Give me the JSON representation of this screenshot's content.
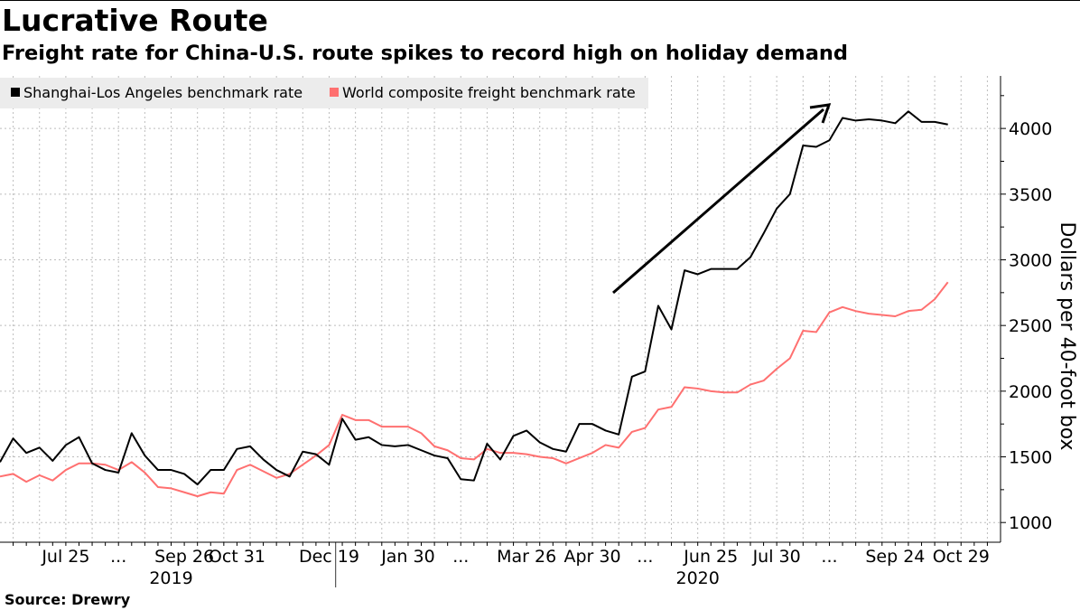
{
  "title": "Lucrative Route",
  "subtitle": "Freight rate for China-U.S. route spikes to record high on holiday demand",
  "source": "Source: Drewry",
  "chart_data": {
    "type": "line",
    "ylabel": "Dollars per 40-foot box",
    "ylim": [
      850,
      4400
    ],
    "y_ticks": [
      1000,
      1500,
      2000,
      2500,
      3000,
      3500,
      4000
    ],
    "legend": [
      "Shanghai-Los Angeles benchmark rate",
      "World composite freight benchmark rate"
    ],
    "legend_position": "top-left",
    "grid": true,
    "x_tick_labels": [
      "Jul 25",
      "...",
      "Sep 26",
      "Oct 31",
      "Dec 19",
      "Jan 30",
      "...",
      "Mar 26",
      "Apr 30",
      "...",
      "Jun 25",
      "Jul 30",
      "...",
      "Sep 24",
      "Oct 29"
    ],
    "x_tick_slots": [
      5,
      9,
      14,
      18,
      25,
      31,
      35,
      40,
      45,
      49,
      54,
      59,
      63,
      68,
      73
    ],
    "year_labels": [
      {
        "label": "2019",
        "slot": 13
      },
      {
        "label": "2020",
        "slot": 53
      }
    ],
    "year_divider_slot": 25.5,
    "slots_total": 76,
    "series": [
      {
        "name": "Shanghai-Los Angeles benchmark rate",
        "color": "#000000",
        "values": [
          1460,
          1640,
          1530,
          1570,
          1470,
          1590,
          1650,
          1450,
          1400,
          1380,
          1680,
          1510,
          1400,
          1400,
          1370,
          1290,
          1400,
          1400,
          1560,
          1580,
          1480,
          1400,
          1350,
          1540,
          1520,
          1440,
          1790,
          1630,
          1650,
          1590,
          1580,
          1590,
          1550,
          1510,
          1490,
          1330,
          1320,
          1600,
          1480,
          1660,
          1700,
          1610,
          1560,
          1540,
          1750,
          1750,
          1700,
          1670,
          2110,
          2150,
          2650,
          2470,
          2920,
          2890,
          2930,
          2930,
          2930,
          3020,
          3200,
          3390,
          3500,
          3870,
          3860,
          3910,
          4080,
          4060,
          4070,
          4060,
          4040,
          4130,
          4050,
          4050,
          4030
        ]
      },
      {
        "name": "World composite freight benchmark rate",
        "color": "#ff7070",
        "values": [
          1350,
          1370,
          1310,
          1360,
          1320,
          1400,
          1450,
          1450,
          1440,
          1400,
          1460,
          1380,
          1270,
          1260,
          1230,
          1200,
          1230,
          1220,
          1400,
          1440,
          1390,
          1340,
          1370,
          1440,
          1510,
          1590,
          1820,
          1780,
          1780,
          1730,
          1730,
          1730,
          1680,
          1580,
          1550,
          1490,
          1480,
          1560,
          1530,
          1530,
          1520,
          1500,
          1490,
          1450,
          1490,
          1530,
          1590,
          1570,
          1690,
          1720,
          1860,
          1880,
          2030,
          2020,
          2000,
          1990,
          1990,
          2050,
          2080,
          2170,
          2250,
          2460,
          2450,
          2600,
          2640,
          2610,
          2590,
          2580,
          2570,
          2610,
          2620,
          2700,
          2830
        ]
      }
    ],
    "annotation": "arrow"
  }
}
